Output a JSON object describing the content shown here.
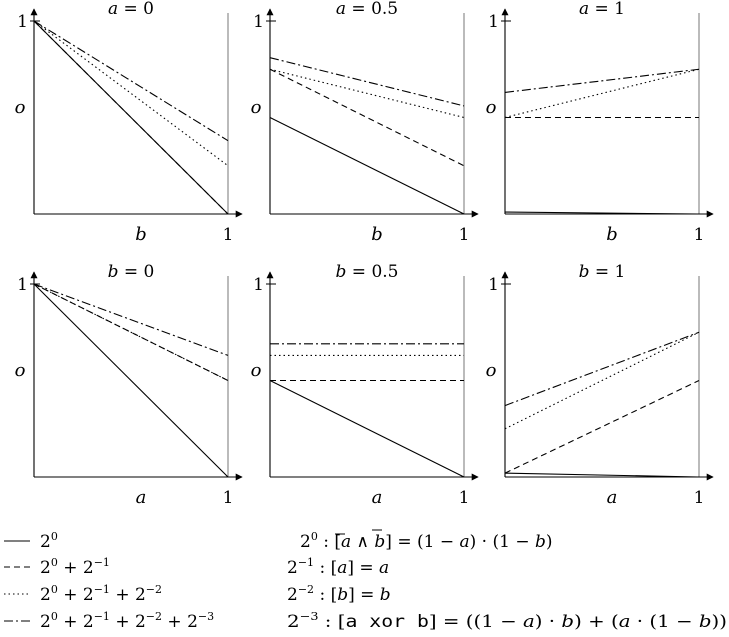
{
  "styles": {
    "2^0": "",
    "2^0 + 2^-1": "6,4",
    "2^0 + 2^-1 + 2^-2": "1.5,3",
    "2^0 + 2^-1 + 2^-2 + 2^-3": "9,3,2,3"
  },
  "chart_data": [
    {
      "type": "line",
      "title": "a = 0",
      "xlabel": "b",
      "ylabel": "o",
      "xlim": [
        0,
        1
      ],
      "ylim": [
        0,
        1
      ],
      "xticks": [
        "1"
      ],
      "yticks": [
        "1"
      ],
      "x": [
        0,
        1
      ],
      "series": [
        {
          "name": "2^0",
          "values": [
            1,
            0
          ]
        },
        {
          "name": "2^0 + 2^-1",
          "values": [
            1,
            0
          ]
        },
        {
          "name": "2^0 + 2^-1 + 2^-2",
          "values": [
            1,
            0.25
          ]
        },
        {
          "name": "2^0 + 2^-1 + 2^-2 + 2^-3",
          "values": [
            1,
            0.38
          ]
        }
      ]
    },
    {
      "type": "line",
      "title": "a = 0.5",
      "xlabel": "b",
      "ylabel": "o",
      "xlim": [
        0,
        1
      ],
      "ylim": [
        0,
        1
      ],
      "xticks": [
        "1"
      ],
      "yticks": [
        "1"
      ],
      "x": [
        0,
        1
      ],
      "series": [
        {
          "name": "2^0",
          "values": [
            0.5,
            0
          ]
        },
        {
          "name": "2^0 + 2^-1",
          "values": [
            0.75,
            0.25
          ]
        },
        {
          "name": "2^0 + 2^-1 + 2^-2",
          "values": [
            0.75,
            0.5
          ]
        },
        {
          "name": "2^0 + 2^-1 + 2^-2 + 2^-3",
          "values": [
            0.81,
            0.56
          ]
        }
      ]
    },
    {
      "type": "line",
      "title": "a = 1",
      "xlabel": "b",
      "ylabel": "o",
      "xlim": [
        0,
        1
      ],
      "ylim": [
        0,
        1
      ],
      "xticks": [
        "1"
      ],
      "yticks": [
        "1"
      ],
      "x": [
        0,
        1
      ],
      "series": [
        {
          "name": "2^0",
          "values": [
            0.01,
            0
          ]
        },
        {
          "name": "2^0 + 2^-1",
          "values": [
            0.5,
            0.5
          ]
        },
        {
          "name": "2^0 + 2^-1 + 2^-2",
          "values": [
            0.5,
            0.75
          ]
        },
        {
          "name": "2^0 + 2^-1 + 2^-2 + 2^-3",
          "values": [
            0.63,
            0.75
          ]
        }
      ]
    },
    {
      "type": "line",
      "title": "b = 0",
      "xlabel": "a",
      "ylabel": "o",
      "xlim": [
        0,
        1
      ],
      "ylim": [
        0,
        1
      ],
      "xticks": [
        "1"
      ],
      "yticks": [
        "1"
      ],
      "x": [
        0,
        1
      ],
      "series": [
        {
          "name": "2^0",
          "values": [
            1,
            0
          ]
        },
        {
          "name": "2^0 + 2^-1",
          "values": [
            1,
            0.5
          ]
        },
        {
          "name": "2^0 + 2^-1 + 2^-2",
          "values": [
            1,
            0.5
          ]
        },
        {
          "name": "2^0 + 2^-1 + 2^-2 + 2^-3",
          "values": [
            1,
            0.63
          ]
        }
      ]
    },
    {
      "type": "line",
      "title": "b = 0.5",
      "xlabel": "a",
      "ylabel": "o",
      "xlim": [
        0,
        1
      ],
      "ylim": [
        0,
        1
      ],
      "xticks": [
        "1"
      ],
      "yticks": [
        "1"
      ],
      "x": [
        0,
        1
      ],
      "series": [
        {
          "name": "2^0",
          "values": [
            0.5,
            0
          ]
        },
        {
          "name": "2^0 + 2^-1",
          "values": [
            0.5,
            0.5
          ]
        },
        {
          "name": "2^0 + 2^-1 + 2^-2",
          "values": [
            0.63,
            0.63
          ]
        },
        {
          "name": "2^0 + 2^-1 + 2^-2 + 2^-3",
          "values": [
            0.69,
            0.69
          ]
        }
      ]
    },
    {
      "type": "line",
      "title": "b = 1",
      "xlabel": "a",
      "ylabel": "o",
      "xlim": [
        0,
        1
      ],
      "ylim": [
        0,
        1
      ],
      "xticks": [
        "1"
      ],
      "yticks": [
        "1"
      ],
      "x": [
        0,
        1
      ],
      "series": [
        {
          "name": "2^0",
          "values": [
            0.02,
            0
          ]
        },
        {
          "name": "2^0 + 2^-1",
          "values": [
            0.02,
            0.5
          ]
        },
        {
          "name": "2^0 + 2^-1 + 2^-2",
          "values": [
            0.25,
            0.75
          ]
        },
        {
          "name": "2^0 + 2^-1 + 2^-2 + 2^-3",
          "values": [
            0.37,
            0.75
          ]
        }
      ]
    }
  ],
  "legend": {
    "items": [
      "2^0",
      "2^0 + 2^-1",
      "2^0 + 2^-1 + 2^-2",
      "2^0 + 2^-1 + 2^-2 + 2^-3"
    ]
  },
  "equations": [
    "2^0 : [ā ∧ b̄] = (1 − a) · (1 − b)",
    "2^-1 : [a] = a",
    "2^-2 : [b] = b",
    "2^-3 : [a xor b] = ((1 − a) · b) + (a · (1 − b))"
  ]
}
